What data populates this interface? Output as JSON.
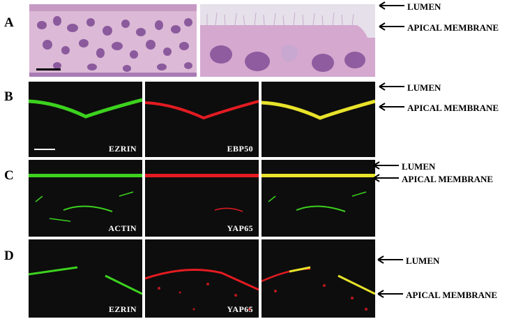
{
  "rows": {
    "A": {
      "letter": "A"
    },
    "B": {
      "letter": "B",
      "labels": [
        "EZRIN",
        "EBP50",
        ""
      ]
    },
    "C": {
      "letter": "C",
      "labels": [
        "ACTIN",
        "YAP65",
        ""
      ]
    },
    "D": {
      "letter": "D",
      "labels": [
        "EZRIN",
        "YAP65",
        ""
      ]
    }
  },
  "annotations": {
    "lumen": "LUMEN",
    "apical_membrane": "APICAL MEMBRANE"
  },
  "colors": {
    "green": "#3cd21e",
    "red": "#e41b22",
    "yellow": "#e8e32a",
    "background": "#0d0d0d",
    "he_pink": "#d9b6d4",
    "he_nucleus": "#7d4a94"
  },
  "icons": [
    "left-arrow-icon",
    "scale-bar"
  ]
}
